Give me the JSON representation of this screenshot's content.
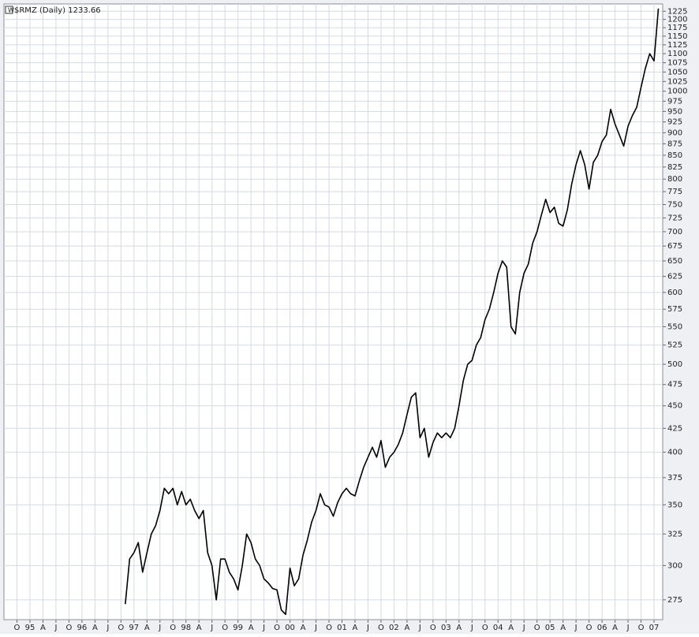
{
  "chart_data": {
    "type": "line",
    "title": "$RMZ (Daily) 1233.66",
    "yscale": "log",
    "grid": true,
    "xlim": [
      "1994-07",
      "2007-03"
    ],
    "ylim": [
      261.5,
      1248
    ],
    "yticks": [
      275,
      300,
      325,
      350,
      375,
      400,
      425,
      450,
      475,
      500,
      525,
      550,
      575,
      600,
      625,
      650,
      675,
      700,
      725,
      750,
      775,
      800,
      825,
      850,
      875,
      900,
      925,
      950,
      975,
      1000,
      1025,
      1050,
      1075,
      1100,
      1125,
      1150,
      1175,
      1200,
      1225
    ],
    "xticks": [
      {
        "value": "1994-10",
        "label": "O"
      },
      {
        "value": "1995-01",
        "label": "95"
      },
      {
        "value": "1995-04",
        "label": "A"
      },
      {
        "value": "1995-07",
        "label": "J"
      },
      {
        "value": "1995-10",
        "label": "O"
      },
      {
        "value": "1996-01",
        "label": "96"
      },
      {
        "value": "1996-04",
        "label": "A"
      },
      {
        "value": "1996-07",
        "label": "J"
      },
      {
        "value": "1996-10",
        "label": "O"
      },
      {
        "value": "1997-01",
        "label": "97"
      },
      {
        "value": "1997-04",
        "label": "A"
      },
      {
        "value": "1997-07",
        "label": "J"
      },
      {
        "value": "1997-10",
        "label": "O"
      },
      {
        "value": "1998-01",
        "label": "98"
      },
      {
        "value": "1998-04",
        "label": "A"
      },
      {
        "value": "1998-07",
        "label": "J"
      },
      {
        "value": "1998-10",
        "label": "O"
      },
      {
        "value": "1999-01",
        "label": "99"
      },
      {
        "value": "1999-04",
        "label": "A"
      },
      {
        "value": "1999-07",
        "label": "J"
      },
      {
        "value": "1999-10",
        "label": "O"
      },
      {
        "value": "2000-01",
        "label": "00"
      },
      {
        "value": "2000-04",
        "label": "A"
      },
      {
        "value": "2000-07",
        "label": "J"
      },
      {
        "value": "2000-10",
        "label": "O"
      },
      {
        "value": "2001-01",
        "label": "01"
      },
      {
        "value": "2001-04",
        "label": "A"
      },
      {
        "value": "2001-07",
        "label": "J"
      },
      {
        "value": "2001-10",
        "label": "O"
      },
      {
        "value": "2002-01",
        "label": "02"
      },
      {
        "value": "2002-04",
        "label": "A"
      },
      {
        "value": "2002-07",
        "label": "J"
      },
      {
        "value": "2002-10",
        "label": "O"
      },
      {
        "value": "2003-01",
        "label": "03"
      },
      {
        "value": "2003-04",
        "label": "A"
      },
      {
        "value": "2003-07",
        "label": "J"
      },
      {
        "value": "2003-10",
        "label": "O"
      },
      {
        "value": "2004-01",
        "label": "04"
      },
      {
        "value": "2004-04",
        "label": "A"
      },
      {
        "value": "2004-07",
        "label": "J"
      },
      {
        "value": "2004-10",
        "label": "O"
      },
      {
        "value": "2005-01",
        "label": "05"
      },
      {
        "value": "2005-04",
        "label": "A"
      },
      {
        "value": "2005-07",
        "label": "J"
      },
      {
        "value": "2005-10",
        "label": "O"
      },
      {
        "value": "2006-01",
        "label": "06"
      },
      {
        "value": "2006-04",
        "label": "A"
      },
      {
        "value": "2006-07",
        "label": "J"
      },
      {
        "value": "2006-10",
        "label": "O"
      },
      {
        "value": "2007-01",
        "label": "07"
      }
    ],
    "x": [
      "1996-11",
      "1996-12",
      "1997-01",
      "1997-02",
      "1997-03",
      "1997-04",
      "1997-05",
      "1997-06",
      "1997-07",
      "1997-08",
      "1997-09",
      "1997-10",
      "1997-11",
      "1997-12",
      "1998-01",
      "1998-02",
      "1998-03",
      "1998-04",
      "1998-05",
      "1998-06",
      "1998-07",
      "1998-08",
      "1998-09",
      "1998-10",
      "1998-11",
      "1998-12",
      "1999-01",
      "1999-02",
      "1999-03",
      "1999-04",
      "1999-05",
      "1999-06",
      "1999-07",
      "1999-08",
      "1999-09",
      "1999-10",
      "1999-11",
      "1999-12",
      "2000-01",
      "2000-02",
      "2000-03",
      "2000-04",
      "2000-05",
      "2000-06",
      "2000-07",
      "2000-08",
      "2000-09",
      "2000-10",
      "2000-11",
      "2000-12",
      "2001-01",
      "2001-02",
      "2001-03",
      "2001-04",
      "2001-05",
      "2001-06",
      "2001-07",
      "2001-08",
      "2001-09",
      "2001-10",
      "2001-11",
      "2001-12",
      "2002-01",
      "2002-02",
      "2002-03",
      "2002-04",
      "2002-05",
      "2002-06",
      "2002-07",
      "2002-08",
      "2002-09",
      "2002-10",
      "2002-11",
      "2002-12",
      "2003-01",
      "2003-02",
      "2003-03",
      "2003-04",
      "2003-05",
      "2003-06",
      "2003-07",
      "2003-08",
      "2003-09",
      "2003-10",
      "2003-11",
      "2003-12",
      "2004-01",
      "2004-02",
      "2004-03",
      "2004-04",
      "2004-05",
      "2004-06",
      "2004-07",
      "2004-08",
      "2004-09",
      "2004-10",
      "2004-11",
      "2004-12",
      "2005-01",
      "2005-02",
      "2005-03",
      "2005-04",
      "2005-05",
      "2005-06",
      "2005-07",
      "2005-08",
      "2005-09",
      "2005-10",
      "2005-11",
      "2005-12",
      "2006-01",
      "2006-02",
      "2006-03",
      "2006-04",
      "2006-05",
      "2006-06",
      "2006-07",
      "2006-08",
      "2006-09",
      "2006-10",
      "2006-11",
      "2006-12",
      "2007-01",
      "2007-02"
    ],
    "series": [
      {
        "name": "$RMZ",
        "color": "#000000",
        "values": [
          272,
          305,
          310,
          318,
          295,
          310,
          325,
          332,
          345,
          365,
          360,
          365,
          350,
          362,
          350,
          355,
          345,
          338,
          345,
          310,
          300,
          275,
          305,
          305,
          295,
          290,
          282,
          300,
          325,
          318,
          305,
          300,
          290,
          287,
          283,
          282,
          268,
          265,
          298,
          285,
          290,
          308,
          320,
          335,
          345,
          360,
          350,
          348,
          340,
          352,
          360,
          365,
          360,
          358,
          372,
          385,
          395,
          405,
          395,
          412,
          385,
          395,
          400,
          408,
          420,
          440,
          460,
          465,
          415,
          425,
          395,
          410,
          420,
          415,
          420,
          415,
          425,
          450,
          480,
          500,
          505,
          525,
          535,
          560,
          575,
          600,
          630,
          650,
          640,
          550,
          540,
          600,
          630,
          645,
          680,
          700,
          730,
          760,
          735,
          745,
          715,
          710,
          740,
          790,
          830,
          860,
          830,
          780,
          835,
          850,
          880,
          895,
          955,
          920,
          895,
          870,
          915,
          940,
          960,
          1010,
          1060,
          1100,
          1080,
          1233.66
        ]
      }
    ]
  }
}
